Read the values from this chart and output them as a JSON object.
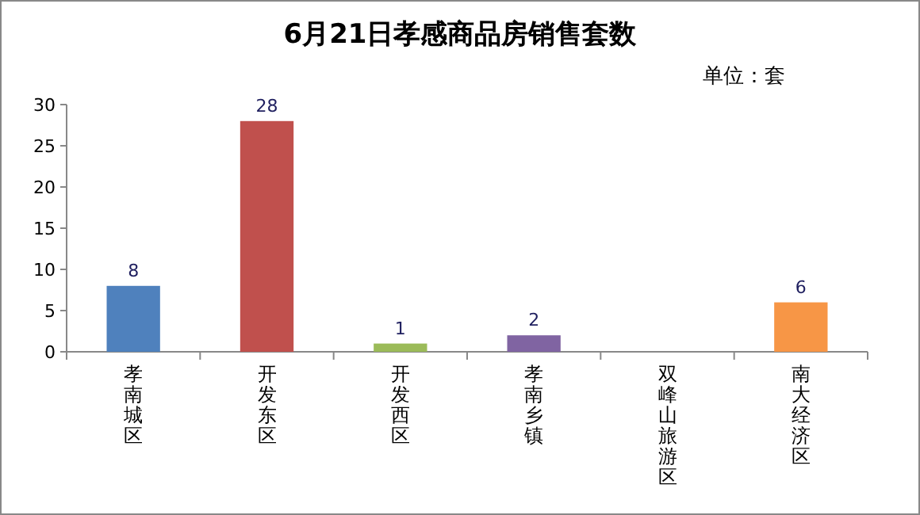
{
  "chart_data": {
    "type": "bar",
    "title": "6月21日孝感商品房销售套数",
    "annotations": [
      "单位：套"
    ],
    "categories": [
      "孝南城区",
      "开发东区",
      "开发西区",
      "孝南乡镇",
      "双峰山旅游区",
      "南大经济区"
    ],
    "values": [
      8,
      28,
      1,
      2,
      0,
      6
    ],
    "colors": [
      "#4f81bd",
      "#c0504d",
      "#9bbb59",
      "#8064a2",
      "#4bacc6",
      "#f79646"
    ],
    "value_labels": [
      "8",
      "28",
      "1",
      "2",
      null,
      "6"
    ],
    "ylim": [
      0,
      30
    ],
    "yticks": [
      0,
      5,
      10,
      15,
      20,
      25,
      30
    ],
    "grid": false
  }
}
